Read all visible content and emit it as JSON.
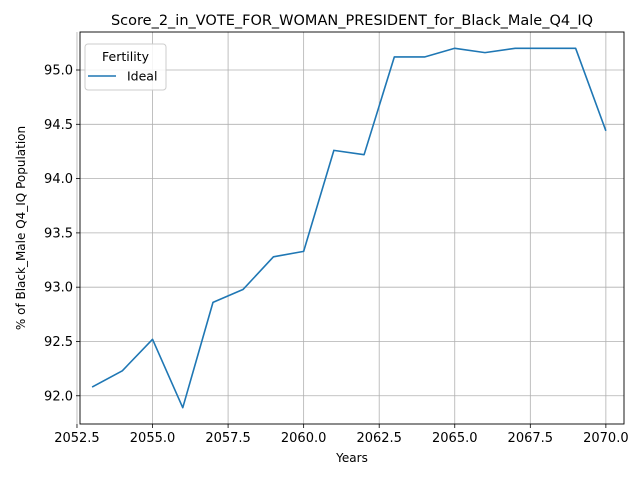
{
  "chart_data": {
    "type": "line",
    "title": "Score_2_in_VOTE_FOR_WOMAN_PRESIDENT_for_Black_Male_Q4_IQ",
    "xlabel": "Years",
    "ylabel": "% of Black_Male Q4_IQ Population",
    "xlim": [
      2052.6,
      2070.6
    ],
    "ylim": [
      91.74,
      95.35
    ],
    "x_ticks": [
      2052.5,
      2055.0,
      2057.5,
      2060.0,
      2062.5,
      2065.0,
      2067.5,
      2070.0
    ],
    "x_tick_labels": [
      "2052.5",
      "2055.0",
      "2057.5",
      "2060.0",
      "2062.5",
      "2065.0",
      "2067.5",
      "2070.0"
    ],
    "y_ticks": [
      92.0,
      92.5,
      93.0,
      93.5,
      94.0,
      94.5,
      95.0
    ],
    "y_tick_labels": [
      "92.0",
      "92.5",
      "93.0",
      "93.5",
      "94.0",
      "94.5",
      "95.0"
    ],
    "grid": true,
    "legend": {
      "title": "Fertility",
      "placement": "top-left"
    },
    "series": [
      {
        "name": "Ideal",
        "color": "#1f77b4",
        "x": [
          2053,
          2054,
          2055,
          2056,
          2057,
          2058,
          2059,
          2060,
          2061,
          2062,
          2063,
          2064,
          2065,
          2066,
          2067,
          2068,
          2069,
          2070
        ],
        "y": [
          92.08,
          92.23,
          92.52,
          91.89,
          92.86,
          92.98,
          93.28,
          93.33,
          94.26,
          94.22,
          95.12,
          95.12,
          95.2,
          95.16,
          95.2,
          95.2,
          95.2,
          94.44
        ]
      }
    ]
  }
}
